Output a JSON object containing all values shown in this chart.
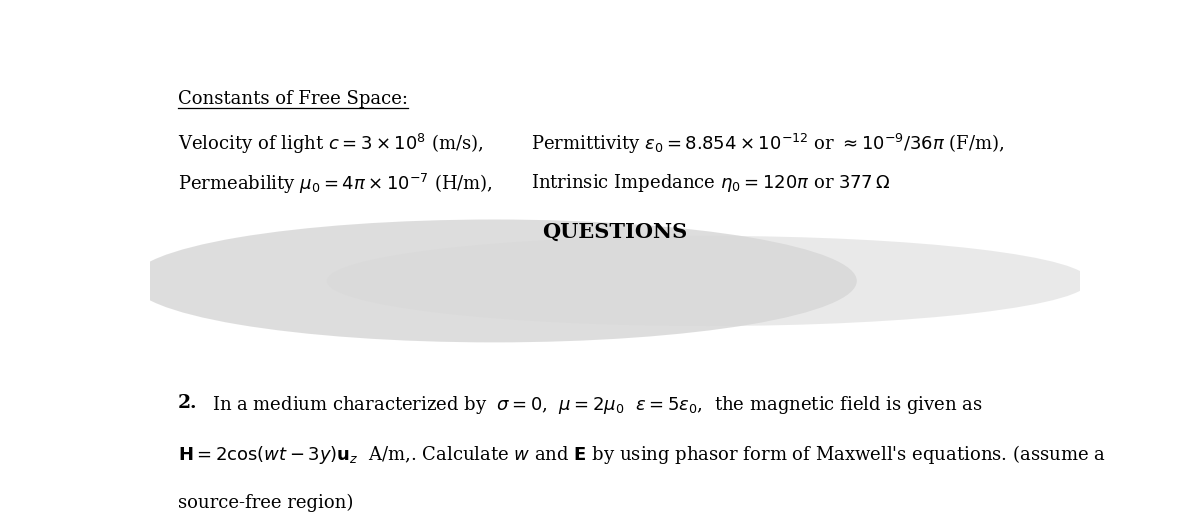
{
  "background_color": "#ffffff",
  "fig_width": 12.0,
  "fig_height": 5.32,
  "dpi": 100,
  "underlined_title": "Constants of Free Space:",
  "line1_left": "Velocity of light $c = 3\\times10^{8}$ (m/s),",
  "line1_right": "Permittivity $\\varepsilon_0 = 8.854\\times10^{-12}$ or $\\approx 10^{-9}/36\\pi$ (F/m),",
  "line2_left": "Permeability $\\mu_0 = 4\\pi\\times10^{-7}$ (H/m),",
  "line2_right": "Intrinsic Impedance $\\eta_0 = 120\\pi$ or $377\\,\\Omega$",
  "questions_label": "QUESTIONS",
  "ellipse_color": "#d8d8d8",
  "font_size_body": 13,
  "font_size_questions": 15
}
